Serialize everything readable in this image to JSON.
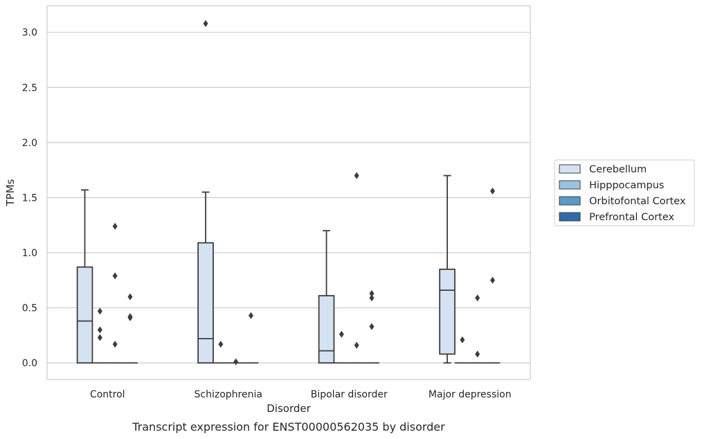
{
  "chart_data": {
    "type": "box",
    "caption": "Transcript expression for ENST00000562035 by disorder",
    "xlabel": "Disorder",
    "ylabel": "TPMs",
    "ylim": [
      -0.15,
      3.24
    ],
    "yticks": [
      0.0,
      0.5,
      1.0,
      1.5,
      2.0,
      2.5,
      3.0
    ],
    "ytick_labels": [
      "0.0",
      "0.5",
      "1.0",
      "1.5",
      "2.0",
      "2.5",
      "3.0"
    ],
    "grid": "horizontal",
    "legend_position": "right",
    "categories": [
      "Control",
      "Schizophrenia",
      "Bipolar disorder",
      "Major depression"
    ],
    "series": [
      {
        "name": "Cerebellum",
        "color": "#d4e2f1",
        "boxes": [
          {
            "whislo": 0.0,
            "q1": 0.0,
            "med": 0.38,
            "q3": 0.87,
            "whishi": 1.57,
            "fliers": []
          },
          {
            "whislo": 0.0,
            "q1": 0.0,
            "med": 0.22,
            "q3": 1.09,
            "whishi": 1.55,
            "fliers": [
              3.08
            ]
          },
          {
            "whislo": 0.0,
            "q1": 0.0,
            "med": 0.11,
            "q3": 0.61,
            "whishi": 1.2,
            "fliers": []
          },
          {
            "whislo": 0.0,
            "q1": 0.08,
            "med": 0.66,
            "q3": 0.85,
            "whishi": 1.7,
            "fliers": []
          }
        ]
      },
      {
        "name": "Hipppocampus",
        "color": "#9cc3de",
        "boxes": [
          {
            "whislo": 0.0,
            "q1": 0.0,
            "med": 0.0,
            "q3": 0.0,
            "whishi": 0.0,
            "fliers": [
              0.47,
              0.3,
              0.23
            ]
          },
          {
            "whislo": 0.0,
            "q1": 0.0,
            "med": 0.0,
            "q3": 0.0,
            "whishi": 0.0,
            "fliers": [
              0.17
            ]
          },
          {
            "whislo": 0.0,
            "q1": 0.0,
            "med": 0.0,
            "q3": 0.0,
            "whishi": 0.0,
            "fliers": [
              0.26
            ]
          },
          {
            "whislo": 0.0,
            "q1": 0.0,
            "med": 0.0,
            "q3": 0.0,
            "whishi": 0.0,
            "fliers": [
              0.21
            ]
          }
        ]
      },
      {
        "name": "Orbitofontal Cortex",
        "color": "#5a9ac8",
        "boxes": [
          {
            "whislo": 0.0,
            "q1": 0.0,
            "med": 0.0,
            "q3": 0.0,
            "whishi": 0.0,
            "fliers": [
              1.24,
              0.79,
              0.17
            ]
          },
          {
            "whislo": 0.0,
            "q1": 0.0,
            "med": 0.0,
            "q3": 0.0,
            "whishi": 0.0,
            "fliers": [
              0.01
            ]
          },
          {
            "whislo": 0.0,
            "q1": 0.0,
            "med": 0.0,
            "q3": 0.0,
            "whishi": 0.0,
            "fliers": [
              1.7,
              0.16
            ]
          },
          {
            "whislo": 0.0,
            "q1": 0.0,
            "med": 0.0,
            "q3": 0.0,
            "whishi": 0.0,
            "fliers": [
              0.59,
              0.08
            ]
          }
        ]
      },
      {
        "name": "Prefrontal Cortex",
        "color": "#2e6ba8",
        "boxes": [
          {
            "whislo": 0.0,
            "q1": 0.0,
            "med": 0.0,
            "q3": 0.0,
            "whishi": 0.0,
            "fliers": [
              0.6,
              0.42,
              0.41
            ]
          },
          {
            "whislo": 0.0,
            "q1": 0.0,
            "med": 0.0,
            "q3": 0.0,
            "whishi": 0.0,
            "fliers": [
              0.43
            ]
          },
          {
            "whislo": 0.0,
            "q1": 0.0,
            "med": 0.0,
            "q3": 0.0,
            "whishi": 0.0,
            "fliers": [
              0.63,
              0.59,
              0.33
            ]
          },
          {
            "whislo": 0.0,
            "q1": 0.0,
            "med": 0.0,
            "q3": 0.0,
            "whishi": 0.0,
            "fliers": [
              1.56,
              0.75
            ]
          }
        ]
      }
    ]
  }
}
